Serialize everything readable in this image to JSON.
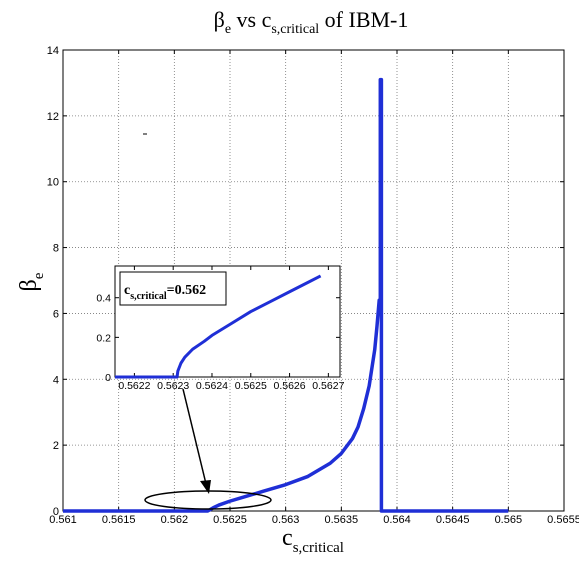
{
  "chart_data": {
    "type": "line",
    "title": {
      "base": "β",
      "sub": "e",
      "mid": " vs c",
      "sub2": "s,critical",
      "tail": " of IBM-1"
    },
    "xlabel": {
      "base": "c",
      "sub": "s,critical"
    },
    "ylabel": {
      "base": "β",
      "sub": "e"
    },
    "xlim": [
      0.561,
      0.5655
    ],
    "ylim": [
      0,
      14
    ],
    "grid": true,
    "line_color": "#1f2fd6",
    "x_ticks": [
      "0.561",
      "0.5615",
      "0.562",
      "0.5625",
      "0.563",
      "0.5635",
      "0.564",
      "0.5645",
      "0.565",
      "0.5655"
    ],
    "y_ticks": [
      "0",
      "2",
      "4",
      "6",
      "8",
      "10",
      "12",
      "14"
    ],
    "series": [
      {
        "x": [
          0.561,
          0.5623,
          0.56235,
          0.5624,
          0.5625,
          0.5626,
          0.5628,
          0.563,
          0.5632,
          0.5634,
          0.5635,
          0.5636,
          0.56365,
          0.5637,
          0.56375,
          0.5638,
          0.56382,
          0.56384,
          0.56385,
          0.56385,
          0.56386,
          0.56386,
          0.565
        ],
        "y": [
          0,
          0,
          0.1,
          0.18,
          0.3,
          0.4,
          0.6,
          0.8,
          1.05,
          1.45,
          1.75,
          2.2,
          2.55,
          3.1,
          3.8,
          4.9,
          5.6,
          6.4,
          6.4,
          13.1,
          13.1,
          0,
          0
        ]
      }
    ],
    "inset": {
      "xlim": [
        0.56215,
        0.56273
      ],
      "ylim": [
        0,
        0.56
      ],
      "x_ticks": [
        "0.5622",
        "0.5623",
        "0.5624",
        "0.5625",
        "0.5626",
        "0.5627"
      ],
      "y_ticks": [
        "0",
        "0.2",
        "0.4"
      ],
      "label": {
        "base": "c",
        "sub": "s,critical",
        "tail": "=0.562"
      },
      "series": [
        {
          "x": [
            0.56215,
            0.56231,
            0.562312,
            0.56232,
            0.56233,
            0.56235,
            0.56238,
            0.5624,
            0.56245,
            0.5625,
            0.56255,
            0.5626,
            0.56265,
            0.56268
          ],
          "y": [
            0,
            0,
            0.03,
            0.07,
            0.1,
            0.14,
            0.18,
            0.21,
            0.27,
            0.33,
            0.38,
            0.43,
            0.48,
            0.51
          ]
        }
      ]
    }
  }
}
